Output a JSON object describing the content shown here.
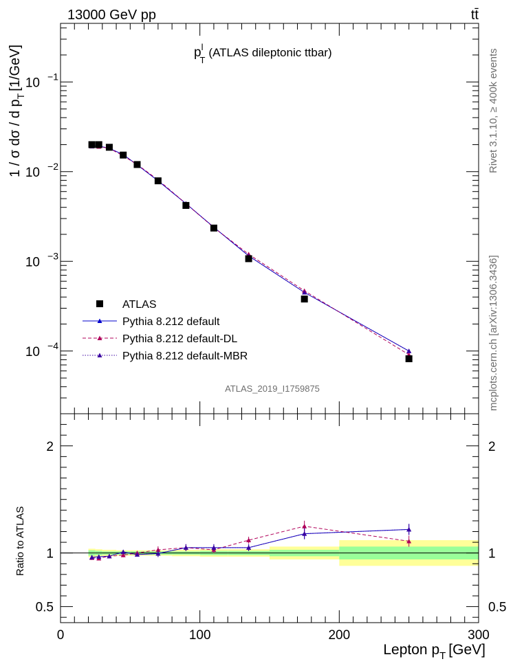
{
  "header": {
    "energy_label": "13000 GeV pp",
    "process_label": "tt̄"
  },
  "side_text": {
    "rivet_version": "Rivet 3.1.10, ≥ 400k events",
    "source": "mcplots.cern.ch [arXiv:1306.3436]"
  },
  "chart_data": [
    {
      "type": "scatter",
      "panel": "main",
      "title": "(ATLAS dileptonic ttbar)",
      "title_symbol": "p",
      "title_sup": "l",
      "title_sub": "T",
      "ylabel": "1 / σ  dσ / d p",
      "ylabel_sub": "T",
      "ylabel_unit": "[1/GeV]",
      "yscale": "log",
      "xlim": [
        0,
        300
      ],
      "ylim": [
        2e-05,
        0.45
      ],
      "yticks": [
        {
          "v": 0.0001,
          "mant": "10",
          "exp": "−4"
        },
        {
          "v": 0.001,
          "mant": "10",
          "exp": "−3"
        },
        {
          "v": 0.01,
          "mant": "10",
          "exp": "−2"
        },
        {
          "v": 0.1,
          "mant": "10",
          "exp": "−1"
        }
      ],
      "analysis_label": "ATLAS_2019_I1759875",
      "bins": [
        [
          20,
          25
        ],
        [
          25,
          30
        ],
        [
          30,
          40
        ],
        [
          40,
          50
        ],
        [
          50,
          60
        ],
        [
          60,
          80
        ],
        [
          80,
          100
        ],
        [
          100,
          120
        ],
        [
          120,
          150
        ],
        [
          150,
          200
        ],
        [
          200,
          300
        ]
      ],
      "x": [
        22.5,
        27.5,
        35,
        45,
        55,
        70,
        90,
        110,
        135,
        175,
        250
      ],
      "series": [
        {
          "name": "ATLAS",
          "style": "data",
          "color": "#000000",
          "values": [
            0.02,
            0.02,
            0.0187,
            0.0153,
            0.012,
            0.0079,
            0.0042,
            0.00235,
            0.00107,
            0.00038,
            8.2e-05
          ]
        },
        {
          "name": "Pythia 8.212 default",
          "style": "solid",
          "color": "#0000cc",
          "values": [
            0.0192,
            0.0193,
            0.0182,
            0.0155,
            0.0119,
            0.0079,
            0.0044,
            0.0024,
            0.00115,
            0.00045,
            0.0001
          ]
        },
        {
          "name": "Pythia 8.212 default-DL",
          "style": "dashed",
          "color": "#b0005a",
          "values": [
            0.0192,
            0.019,
            0.0182,
            0.015,
            0.012,
            0.0081,
            0.0044,
            0.00238,
            0.0012,
            0.00047,
            9.1e-05
          ]
        },
        {
          "name": "Pythia 8.212 default-MBR",
          "style": "dotted",
          "color": "#3a00a0",
          "values": [
            0.0192,
            0.0193,
            0.0182,
            0.0155,
            0.0119,
            0.0079,
            0.0044,
            0.0024,
            0.00115,
            0.00045,
            0.0001
          ]
        }
      ]
    },
    {
      "type": "line",
      "panel": "ratio",
      "ylabel": "Ratio to ATLAS",
      "xlabel": "Lepton p",
      "xlabel_sub": "T",
      "xlabel_unit": "[GeV]",
      "xlim": [
        0,
        300
      ],
      "ylim": [
        0.35,
        2.3
      ],
      "xticks": [
        0,
        100,
        200,
        300
      ],
      "yticks": [
        0.5,
        1,
        2
      ],
      "band_bins": [
        [
          20,
          25
        ],
        [
          25,
          30
        ],
        [
          30,
          40
        ],
        [
          40,
          50
        ],
        [
          50,
          60
        ],
        [
          60,
          80
        ],
        [
          80,
          100
        ],
        [
          100,
          120
        ],
        [
          120,
          150
        ],
        [
          150,
          200
        ],
        [
          200,
          300
        ]
      ],
      "band_inner": [
        0.025,
        0.02,
        0.015,
        0.015,
        0.015,
        0.015,
        0.015,
        0.02,
        0.02,
        0.03,
        0.06
      ],
      "band_outer": [
        0.04,
        0.035,
        0.03,
        0.025,
        0.025,
        0.025,
        0.03,
        0.035,
        0.035,
        0.06,
        0.12
      ],
      "x": [
        22.5,
        27.5,
        35,
        45,
        55,
        70,
        90,
        110,
        135,
        175,
        250
      ],
      "series": [
        {
          "name": "Pythia 8.212 default",
          "color": "#0000cc",
          "style": "solid",
          "values": [
            0.96,
            0.965,
            0.97,
            1.01,
            0.985,
            0.995,
            1.05,
            1.05,
            1.05,
            1.18,
            1.22
          ]
        },
        {
          "name": "Pythia 8.212 default-DL",
          "color": "#b0005a",
          "style": "dashed",
          "values": [
            0.955,
            0.95,
            0.97,
            0.98,
            1.0,
            1.03,
            1.05,
            1.03,
            1.12,
            1.25,
            1.11
          ]
        },
        {
          "name": "Pythia 8.212 default-MBR",
          "color": "#3a00a0",
          "style": "dotted",
          "values": [
            0.96,
            0.965,
            0.97,
            1.01,
            0.985,
            0.995,
            1.05,
            1.05,
            1.05,
            1.18,
            1.22
          ]
        }
      ]
    }
  ]
}
